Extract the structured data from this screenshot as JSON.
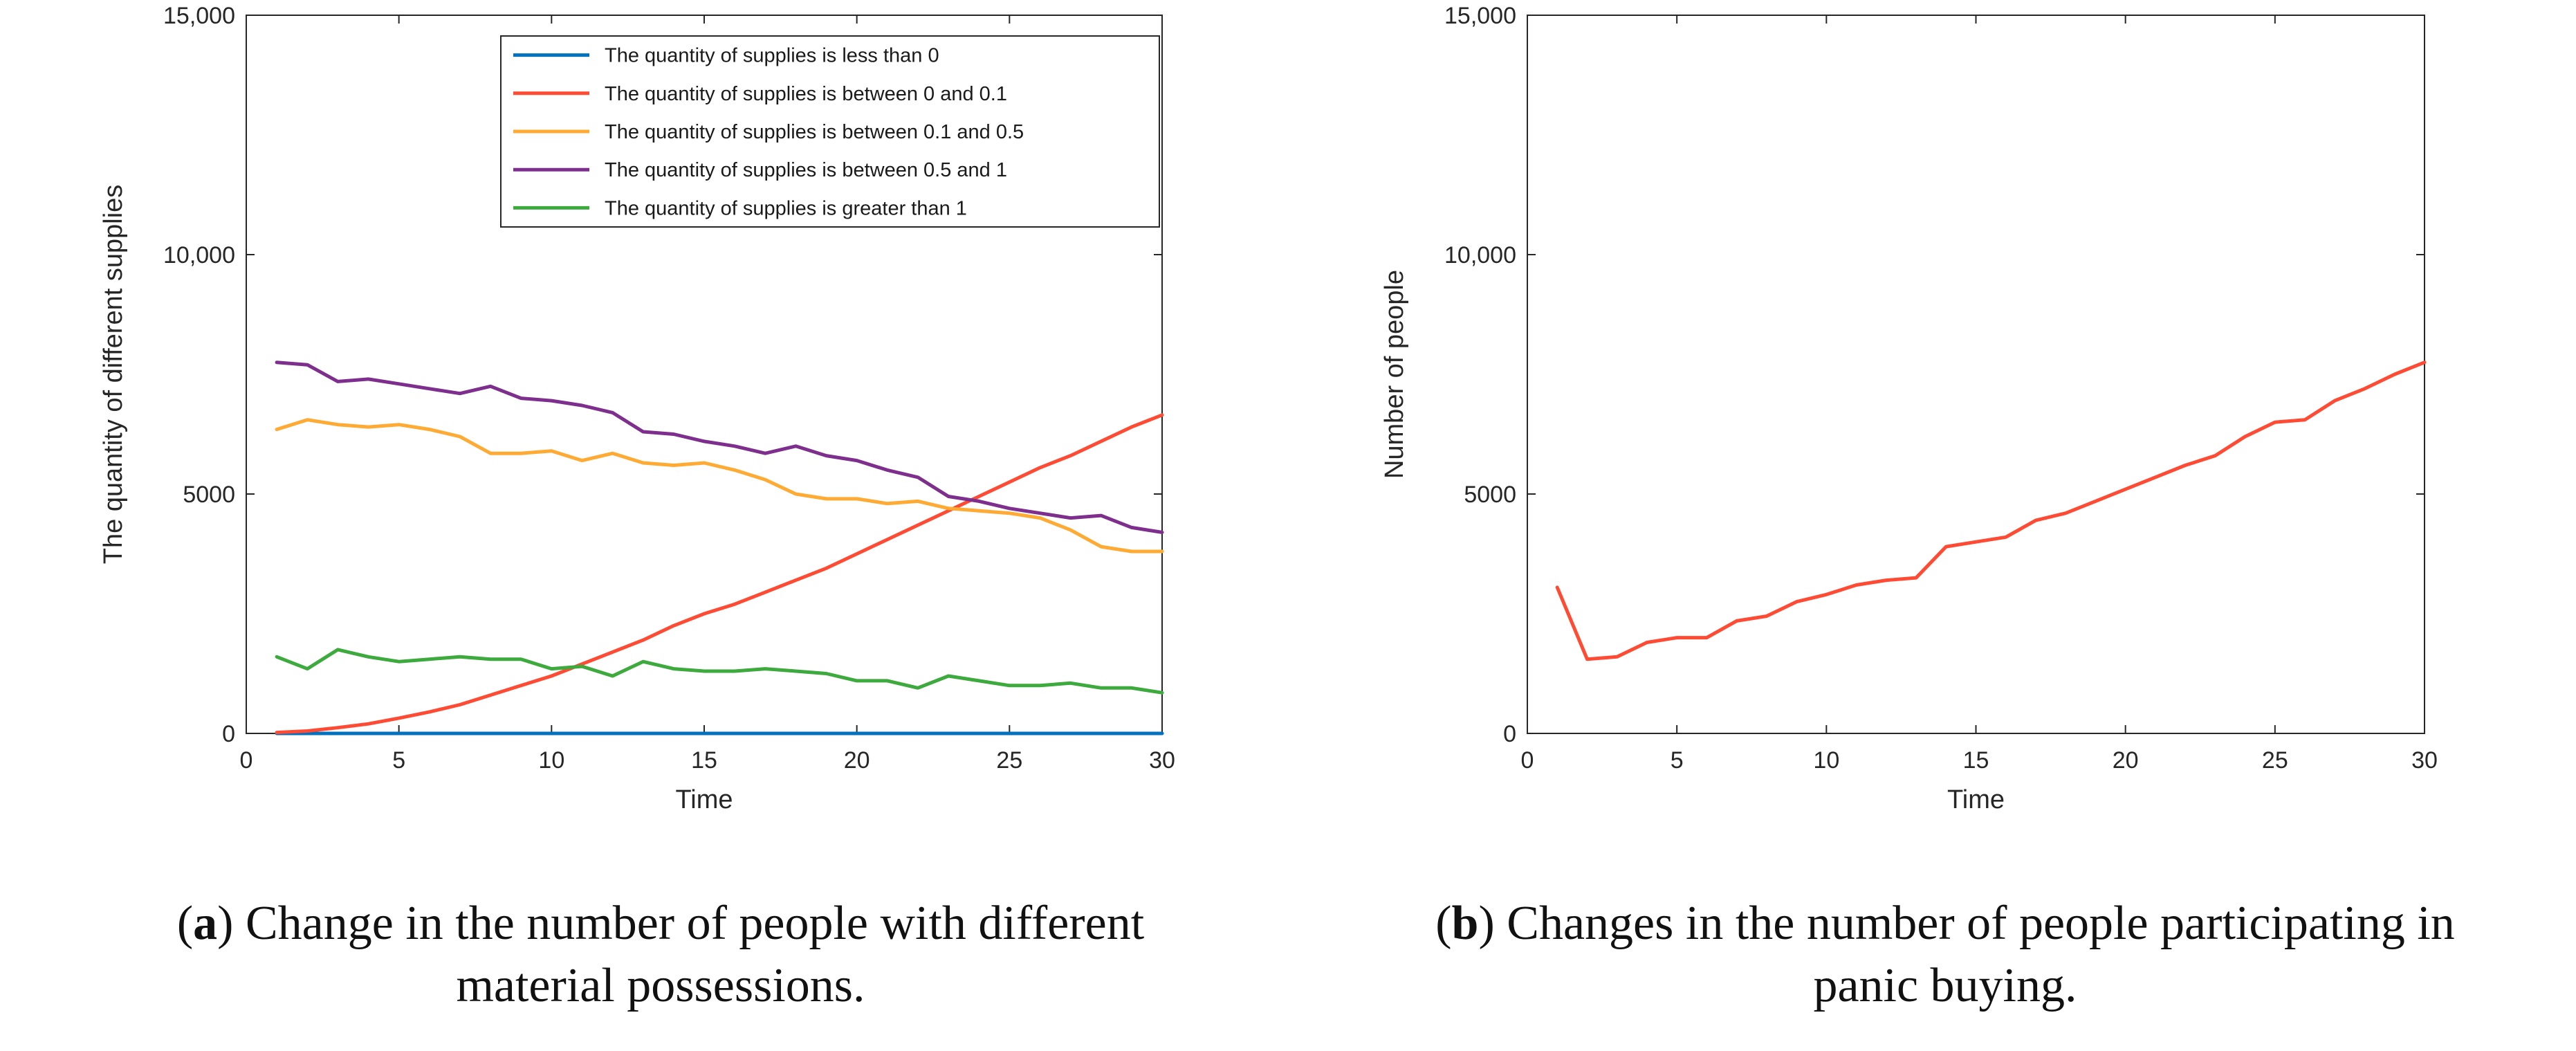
{
  "chart_data": [
    {
      "type": "line",
      "panel": "a",
      "xlabel": "Time",
      "ylabel": "The quantity of different supplies",
      "xlim": [
        0,
        30
      ],
      "ylim": [
        0,
        15000
      ],
      "xticks": [
        "0",
        "5",
        "10",
        "15",
        "20",
        "25",
        "30"
      ],
      "yticks": [
        "0",
        "5000",
        "10,000",
        "15,000"
      ],
      "legend_position": "top-right",
      "x": [
        1,
        2,
        3,
        4,
        5,
        6,
        7,
        8,
        9,
        10,
        11,
        12,
        13,
        14,
        15,
        16,
        17,
        18,
        19,
        20,
        21,
        22,
        23,
        24,
        25,
        26,
        27,
        28,
        29,
        30
      ],
      "series": [
        {
          "name": "The quantity of supplies is less than 0",
          "color": "#0072BD",
          "values": [
            0,
            0,
            0,
            0,
            0,
            0,
            0,
            0,
            0,
            0,
            0,
            0,
            0,
            0,
            0,
            0,
            0,
            0,
            0,
            0,
            0,
            0,
            0,
            0,
            0,
            0,
            0,
            0,
            0,
            0
          ]
        },
        {
          "name": "The quantity of supplies is between 0 and 0.1",
          "color": "#FF4B33",
          "values": [
            20,
            50,
            120,
            200,
            320,
            450,
            600,
            800,
            1000,
            1200,
            1450,
            1700,
            1950,
            2250,
            2500,
            2700,
            2950,
            3200,
            3450,
            3750,
            4050,
            4350,
            4650,
            4950,
            5250,
            5550,
            5800,
            6100,
            6400,
            6650
          ]
        },
        {
          "name": "The quantity of supplies is between 0.1 and 0.5",
          "color": "#FFAA33",
          "values": [
            6350,
            6550,
            6450,
            6400,
            6450,
            6350,
            6200,
            5850,
            5850,
            5900,
            5700,
            5850,
            5650,
            5600,
            5650,
            5500,
            5300,
            5000,
            4900,
            4900,
            4800,
            4850,
            4700,
            4650,
            4600,
            4500,
            4250,
            3900,
            3800,
            3800
          ]
        },
        {
          "name": "The quantity of supplies is between 0.5 and 1",
          "color": "#7E2F8E",
          "values": [
            7750,
            7700,
            7350,
            7400,
            7300,
            7200,
            7100,
            7250,
            7000,
            6950,
            6850,
            6700,
            6300,
            6250,
            6100,
            6000,
            5850,
            6000,
            5800,
            5700,
            5500,
            5350,
            4950,
            4850,
            4700,
            4600,
            4500,
            4550,
            4300,
            4200
          ]
        },
        {
          "name": "The quantity of supplies is greater than 1",
          "color": "#3DAA3D",
          "values": [
            1600,
            1350,
            1750,
            1600,
            1500,
            1550,
            1600,
            1550,
            1550,
            1350,
            1400,
            1200,
            1500,
            1350,
            1300,
            1300,
            1350,
            1300,
            1250,
            1100,
            1100,
            950,
            1200,
            1100,
            1000,
            1000,
            1050,
            950,
            950,
            850
          ]
        }
      ],
      "caption_label": "a",
      "caption_line1": "Change in the number of people with different",
      "caption_line2": "material possessions."
    },
    {
      "type": "line",
      "panel": "b",
      "xlabel": "Time",
      "ylabel": "Number of people",
      "xlim": [
        0,
        30
      ],
      "ylim": [
        0,
        15000
      ],
      "xticks": [
        "0",
        "5",
        "10",
        "15",
        "20",
        "25",
        "30"
      ],
      "yticks": [
        "0",
        "5000",
        "10,000",
        "15,000"
      ],
      "x": [
        1,
        2,
        3,
        4,
        5,
        6,
        7,
        8,
        9,
        10,
        11,
        12,
        13,
        14,
        15,
        16,
        17,
        18,
        19,
        20,
        21,
        22,
        23,
        24,
        25,
        26,
        27,
        28,
        29,
        30
      ],
      "series": [
        {
          "name": "Number of people participating in panic buying",
          "color": "#FF4B33",
          "values": [
            3050,
            1550,
            1600,
            1900,
            2000,
            2000,
            2350,
            2450,
            2750,
            2900,
            3100,
            3200,
            3250,
            3900,
            4000,
            4100,
            4450,
            4600,
            4850,
            5100,
            5350,
            5600,
            5800,
            6200,
            6500,
            6550,
            6950,
            7200,
            7500,
            7750
          ]
        }
      ],
      "caption_label": "b",
      "caption_line1": "Changes in the number of people participating in",
      "caption_line2": "panic buying."
    }
  ]
}
